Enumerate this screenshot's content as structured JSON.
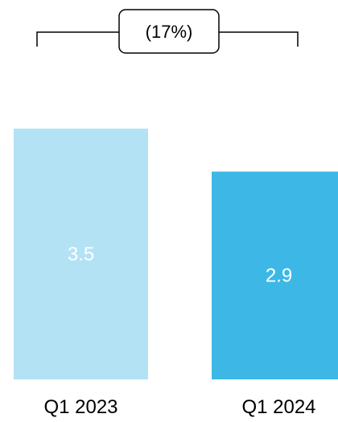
{
  "chart_data": {
    "type": "bar",
    "categories": [
      "Q1 2023",
      "Q1 2024"
    ],
    "values": [
      3.5,
      2.9
    ],
    "value_labels": [
      "3.5",
      "2.9"
    ],
    "bar_colors": [
      "#b4e2f5",
      "#3db8e6"
    ],
    "change_label": "(17%)",
    "title": "",
    "xlabel": "",
    "ylabel": "",
    "ylim": [
      0,
      3.5
    ],
    "grid": false,
    "legend": "none"
  }
}
